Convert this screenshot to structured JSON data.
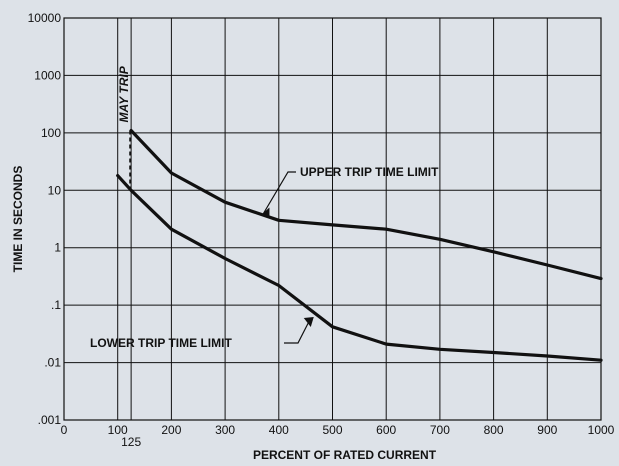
{
  "chart_data": {
    "type": "line",
    "xlabel": "PERCENT OF RATED CURRENT",
    "ylabel": "TIME IN SECONDS",
    "xlim": [
      0,
      1000
    ],
    "ylim": [
      0.001,
      10000
    ],
    "y_scale": "log",
    "grid": true,
    "x_ticks": [
      0,
      100,
      200,
      300,
      400,
      500,
      600,
      700,
      800,
      900,
      1000
    ],
    "x_tick_labels": [
      "0",
      "100",
      "200",
      "300",
      "400",
      "500",
      "600",
      "700",
      "800",
      "900",
      "1000"
    ],
    "x_extra_tick": {
      "value": 125,
      "label": "125"
    },
    "y_ticks": [
      0.001,
      0.01,
      0.1,
      1,
      10,
      100,
      1000,
      10000
    ],
    "y_tick_labels": [
      ".001",
      ".01",
      ".1",
      "1",
      "10",
      "100",
      "1000",
      "10000"
    ],
    "series": [
      {
        "name": "UPPER  TRIP TIME LIMIT",
        "x": [
          125,
          200,
          300,
          400,
          500,
          600,
          700,
          800,
          900,
          1000
        ],
        "y": [
          110,
          20,
          6.2,
          3,
          2.5,
          2.1,
          1.4,
          0.85,
          0.5,
          0.29
        ]
      },
      {
        "name": "LOWER TRIP TIME LIMIT",
        "x": [
          100,
          125,
          200,
          300,
          400,
          500,
          600,
          700,
          800,
          900,
          1000
        ],
        "y": [
          18,
          10,
          2.1,
          0.65,
          0.22,
          0.042,
          0.021,
          0.017,
          0.015,
          0.013,
          0.011
        ]
      }
    ],
    "annotations": [
      {
        "text": "MAY TRIP",
        "x": 125,
        "y_range": [
          10,
          110
        ]
      },
      {
        "text": "UPPER  TRIP TIME LIMIT",
        "points_to": {
          "x": 390,
          "y": 3.1
        }
      },
      {
        "text": "LOWER TRIP TIME LIMIT",
        "points_to": {
          "x": 480,
          "y": 0.07
        }
      }
    ]
  }
}
